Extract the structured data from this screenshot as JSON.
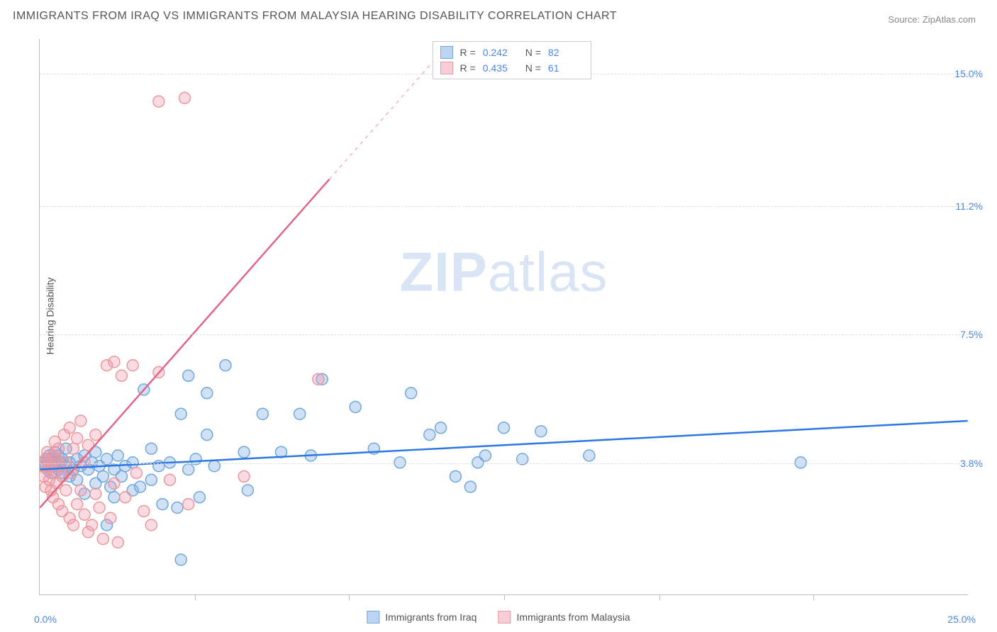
{
  "title": "IMMIGRANTS FROM IRAQ VS IMMIGRANTS FROM MALAYSIA HEARING DISABILITY CORRELATION CHART",
  "source_label": "Source:",
  "source_name": "ZipAtlas.com",
  "y_axis_label": "Hearing Disability",
  "watermark": "ZIPatlas",
  "chart": {
    "type": "scatter",
    "xlim": [
      0,
      25
    ],
    "ylim": [
      0,
      16
    ],
    "x_min_label": "0.0%",
    "x_max_label": "25.0%",
    "y_ticks": [
      {
        "v": 3.8,
        "label": "3.8%"
      },
      {
        "v": 7.5,
        "label": "7.5%"
      },
      {
        "v": 11.2,
        "label": "11.2%"
      },
      {
        "v": 15.0,
        "label": "15.0%"
      }
    ],
    "x_ticks": [
      4.17,
      8.33,
      12.5,
      16.67,
      20.83
    ],
    "background_color": "#ffffff",
    "grid_color": "#dddddd",
    "series": [
      {
        "name": "Immigrants from Iraq",
        "color_fill": "rgba(120, 170, 230, 0.35)",
        "color_stroke": "#6fa8dc",
        "swatch_fill": "#bcd5f2",
        "swatch_stroke": "#6fa8dc",
        "marker_radius": 8,
        "R": "0.242",
        "N": "82",
        "trend": {
          "x1": 0,
          "y1": 3.6,
          "x2": 25,
          "y2": 5.0,
          "color": "#2b78e4",
          "width": 2.5
        },
        "points": [
          [
            0.1,
            3.8
          ],
          [
            0.15,
            3.7
          ],
          [
            0.2,
            3.9
          ],
          [
            0.2,
            3.6
          ],
          [
            0.25,
            4.0
          ],
          [
            0.3,
            3.5
          ],
          [
            0.3,
            3.9
          ],
          [
            0.35,
            3.7
          ],
          [
            0.4,
            3.8
          ],
          [
            0.4,
            4.1
          ],
          [
            0.5,
            3.6
          ],
          [
            0.5,
            4.0
          ],
          [
            0.55,
            3.8
          ],
          [
            0.6,
            3.9
          ],
          [
            0.6,
            3.5
          ],
          [
            0.7,
            3.7
          ],
          [
            0.7,
            4.2
          ],
          [
            0.8,
            3.4
          ],
          [
            0.8,
            3.8
          ],
          [
            0.9,
            3.6
          ],
          [
            1.0,
            3.9
          ],
          [
            1.0,
            3.3
          ],
          [
            1.1,
            3.7
          ],
          [
            1.2,
            4.0
          ],
          [
            1.2,
            2.9
          ],
          [
            1.3,
            3.6
          ],
          [
            1.4,
            3.8
          ],
          [
            1.5,
            3.2
          ],
          [
            1.5,
            4.1
          ],
          [
            1.6,
            3.7
          ],
          [
            1.7,
            3.4
          ],
          [
            1.8,
            3.9
          ],
          [
            1.8,
            2.0
          ],
          [
            1.9,
            3.1
          ],
          [
            2.0,
            3.6
          ],
          [
            2.0,
            2.8
          ],
          [
            2.1,
            4.0
          ],
          [
            2.2,
            3.4
          ],
          [
            2.3,
            3.7
          ],
          [
            2.5,
            3.0
          ],
          [
            2.5,
            3.8
          ],
          [
            2.7,
            3.1
          ],
          [
            2.8,
            5.9
          ],
          [
            3.0,
            3.3
          ],
          [
            3.0,
            4.2
          ],
          [
            3.2,
            3.7
          ],
          [
            3.3,
            2.6
          ],
          [
            3.5,
            3.8
          ],
          [
            3.7,
            2.5
          ],
          [
            3.8,
            5.2
          ],
          [
            3.8,
            1.0
          ],
          [
            4.0,
            3.6
          ],
          [
            4.0,
            6.3
          ],
          [
            4.2,
            3.9
          ],
          [
            4.3,
            2.8
          ],
          [
            4.5,
            4.6
          ],
          [
            4.5,
            5.8
          ],
          [
            4.7,
            3.7
          ],
          [
            5.0,
            6.6
          ],
          [
            5.5,
            4.1
          ],
          [
            5.6,
            3.0
          ],
          [
            6.0,
            5.2
          ],
          [
            6.5,
            4.1
          ],
          [
            7.0,
            5.2
          ],
          [
            7.3,
            4.0
          ],
          [
            7.6,
            6.2
          ],
          [
            8.5,
            5.4
          ],
          [
            9.0,
            4.2
          ],
          [
            9.7,
            3.8
          ],
          [
            10.0,
            5.8
          ],
          [
            10.5,
            4.6
          ],
          [
            10.8,
            4.8
          ],
          [
            11.2,
            3.4
          ],
          [
            11.6,
            3.1
          ],
          [
            11.8,
            3.8
          ],
          [
            12.0,
            4.0
          ],
          [
            12.5,
            4.8
          ],
          [
            13.0,
            3.9
          ],
          [
            13.5,
            4.7
          ],
          [
            14.8,
            4.0
          ],
          [
            20.5,
            3.8
          ]
        ]
      },
      {
        "name": "Immigrants from Malaysia",
        "color_fill": "rgba(240, 150, 175, 0.35)",
        "color_stroke": "#ea9999",
        "swatch_fill": "#f7cdd7",
        "swatch_stroke": "#ea9999",
        "marker_radius": 8,
        "R": "0.435",
        "N": "61",
        "trend": {
          "x1": 0,
          "y1": 2.5,
          "x2": 10.8,
          "y2": 15.6,
          "color": "#e06688",
          "width": 2.5,
          "dash_after_x": 7.8
        },
        "points": [
          [
            0.1,
            3.7
          ],
          [
            0.1,
            3.4
          ],
          [
            0.15,
            3.9
          ],
          [
            0.15,
            3.1
          ],
          [
            0.2,
            3.6
          ],
          [
            0.2,
            4.1
          ],
          [
            0.25,
            3.3
          ],
          [
            0.25,
            3.8
          ],
          [
            0.3,
            3.0
          ],
          [
            0.3,
            3.7
          ],
          [
            0.35,
            4.0
          ],
          [
            0.35,
            2.8
          ],
          [
            0.4,
            3.5
          ],
          [
            0.4,
            4.4
          ],
          [
            0.45,
            3.2
          ],
          [
            0.45,
            3.9
          ],
          [
            0.5,
            2.6
          ],
          [
            0.5,
            4.2
          ],
          [
            0.55,
            3.7
          ],
          [
            0.6,
            2.4
          ],
          [
            0.6,
            3.4
          ],
          [
            0.65,
            4.6
          ],
          [
            0.7,
            3.0
          ],
          [
            0.7,
            3.8
          ],
          [
            0.8,
            4.8
          ],
          [
            0.8,
            2.2
          ],
          [
            0.85,
            3.5
          ],
          [
            0.9,
            4.2
          ],
          [
            0.9,
            2.0
          ],
          [
            1.0,
            4.5
          ],
          [
            1.0,
            2.6
          ],
          [
            1.1,
            3.0
          ],
          [
            1.1,
            5.0
          ],
          [
            1.2,
            2.3
          ],
          [
            1.2,
            3.8
          ],
          [
            1.3,
            1.8
          ],
          [
            1.3,
            4.3
          ],
          [
            1.4,
            2.0
          ],
          [
            1.5,
            2.9
          ],
          [
            1.5,
            4.6
          ],
          [
            1.6,
            2.5
          ],
          [
            1.7,
            1.6
          ],
          [
            1.8,
            6.6
          ],
          [
            1.9,
            2.2
          ],
          [
            2.0,
            6.7
          ],
          [
            2.0,
            3.2
          ],
          [
            2.1,
            1.5
          ],
          [
            2.2,
            6.3
          ],
          [
            2.3,
            2.8
          ],
          [
            2.5,
            6.6
          ],
          [
            2.6,
            3.5
          ],
          [
            2.8,
            2.4
          ],
          [
            3.0,
            2.0
          ],
          [
            3.2,
            6.4
          ],
          [
            3.2,
            14.2
          ],
          [
            3.5,
            3.3
          ],
          [
            3.9,
            14.3
          ],
          [
            4.0,
            2.6
          ],
          [
            5.5,
            3.4
          ],
          [
            7.5,
            6.2
          ]
        ]
      }
    ]
  },
  "bottom_legend": [
    {
      "label": "Immigrants from Iraq",
      "fill": "#bcd5f2",
      "stroke": "#6fa8dc"
    },
    {
      "label": "Immigrants from Malaysia",
      "fill": "#f7cdd7",
      "stroke": "#ea9999"
    }
  ]
}
